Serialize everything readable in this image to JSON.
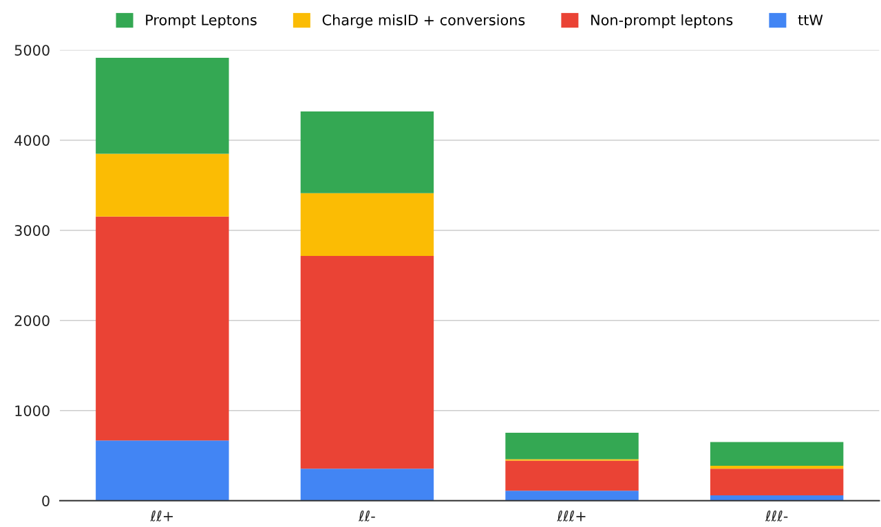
{
  "chart_data": {
    "type": "bar",
    "stacked": true,
    "categories": [
      "ℓℓ+",
      "ℓℓ-",
      "ℓℓℓ+",
      "ℓℓℓ-"
    ],
    "series": [
      {
        "name": "ttW",
        "color": "#4285f4",
        "values": [
          667,
          354,
          111,
          59
        ]
      },
      {
        "name": "Non-prompt leptons",
        "color": "#ea4335",
        "values": [
          2485,
          2361,
          333,
          295
        ]
      },
      {
        "name": "Charge misID + conversions",
        "color": "#fbbc04",
        "values": [
          697,
          698,
          16,
          34
        ]
      },
      {
        "name": "Prompt Leptons",
        "color": "#34a853",
        "values": [
          1066,
          906,
          294,
          262
        ]
      }
    ],
    "ylim": [
      0,
      5000
    ],
    "yticks": [
      0,
      1000,
      2000,
      3000,
      4000,
      5000
    ],
    "grid": "y",
    "legend": "top"
  }
}
